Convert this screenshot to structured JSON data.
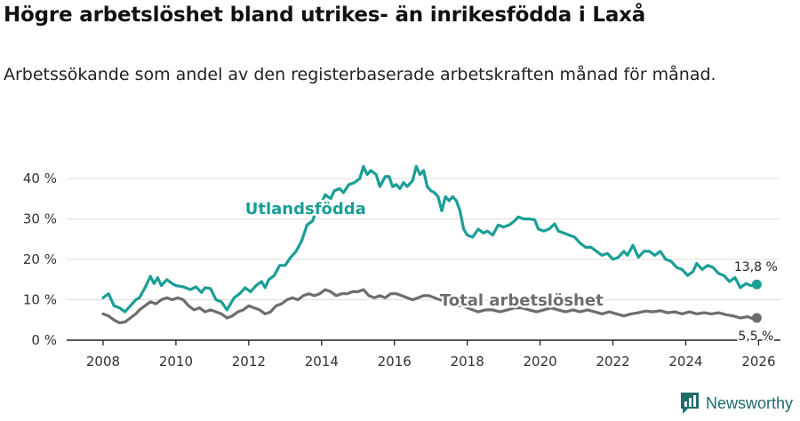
{
  "title": "Högre arbetslöshet bland utrikes- än inrikesfödda i Laxå",
  "subtitle": "Arbetssökande som andel av den registerbaserade arbetskraften månad för månad.",
  "brand": {
    "name": "Newsworthy",
    "icon": "bar-chart-logo-icon"
  },
  "colors": {
    "foreign_born": "#1a9e96",
    "total": "#6d6d6f",
    "grid": "#dddddd",
    "axis": "#222222"
  },
  "chart_data": {
    "type": "line",
    "title": "Högre arbetslöshet bland utrikes- än inrikesfödda i Laxå",
    "xlabel": "",
    "ylabel": "",
    "xlim": [
      2007,
      2026.6
    ],
    "ylim": [
      0,
      40
    ],
    "x_ticks": [
      2008,
      2010,
      2012,
      2014,
      2016,
      2018,
      2020,
      2022,
      2024,
      2026
    ],
    "x_tick_labels": [
      "2008",
      "2010",
      "2012",
      "2014",
      "2016",
      "2018",
      "2020",
      "2022",
      "2024",
      "2026"
    ],
    "y_ticks": [
      0,
      10,
      20,
      30,
      40
    ],
    "y_tick_labels": [
      "0 %",
      "10 %",
      "20 %",
      "30 %",
      "40 %"
    ],
    "grid": true,
    "series": [
      {
        "name": "Utlandsfödda",
        "color": "#1a9e96",
        "end_label": "13,8 %",
        "points": [
          [
            2008.0,
            10.5
          ],
          [
            2008.15,
            11.5
          ],
          [
            2008.3,
            8.5
          ],
          [
            2008.45,
            8.0
          ],
          [
            2008.6,
            7.0
          ],
          [
            2008.75,
            8.5
          ],
          [
            2008.9,
            10.0
          ],
          [
            2009.0,
            10.5
          ],
          [
            2009.15,
            13.0
          ],
          [
            2009.3,
            15.8
          ],
          [
            2009.4,
            14.0
          ],
          [
            2009.5,
            15.5
          ],
          [
            2009.6,
            13.5
          ],
          [
            2009.75,
            15.0
          ],
          [
            2009.9,
            14.0
          ],
          [
            2010.0,
            13.5
          ],
          [
            2010.2,
            13.2
          ],
          [
            2010.4,
            12.5
          ],
          [
            2010.55,
            13.2
          ],
          [
            2010.7,
            11.8
          ],
          [
            2010.8,
            13.0
          ],
          [
            2010.95,
            12.8
          ],
          [
            2011.1,
            10.0
          ],
          [
            2011.25,
            9.5
          ],
          [
            2011.4,
            7.5
          ],
          [
            2011.5,
            9.0
          ],
          [
            2011.6,
            10.5
          ],
          [
            2011.75,
            11.5
          ],
          [
            2011.9,
            13.0
          ],
          [
            2012.05,
            12.0
          ],
          [
            2012.2,
            13.5
          ],
          [
            2012.35,
            14.5
          ],
          [
            2012.45,
            13.0
          ],
          [
            2012.55,
            15.0
          ],
          [
            2012.7,
            16.0
          ],
          [
            2012.85,
            18.5
          ],
          [
            2013.0,
            18.5
          ],
          [
            2013.15,
            20.5
          ],
          [
            2013.3,
            22.0
          ],
          [
            2013.45,
            24.5
          ],
          [
            2013.6,
            28.5
          ],
          [
            2013.75,
            29.5
          ],
          [
            2013.9,
            33.0
          ],
          [
            2014.0,
            34.0
          ],
          [
            2014.1,
            36.0
          ],
          [
            2014.25,
            35.0
          ],
          [
            2014.35,
            37.0
          ],
          [
            2014.5,
            37.5
          ],
          [
            2014.6,
            36.5
          ],
          [
            2014.75,
            38.5
          ],
          [
            2014.9,
            39.0
          ],
          [
            2015.05,
            40.0
          ],
          [
            2015.15,
            43.0
          ],
          [
            2015.25,
            41.0
          ],
          [
            2015.35,
            42.0
          ],
          [
            2015.5,
            41.0
          ],
          [
            2015.6,
            38.0
          ],
          [
            2015.75,
            40.5
          ],
          [
            2015.85,
            40.5
          ],
          [
            2015.95,
            38.0
          ],
          [
            2016.05,
            38.5
          ],
          [
            2016.15,
            37.5
          ],
          [
            2016.25,
            39.0
          ],
          [
            2016.35,
            38.0
          ],
          [
            2016.5,
            39.5
          ],
          [
            2016.6,
            43.0
          ],
          [
            2016.7,
            41.0
          ],
          [
            2016.8,
            42.0
          ],
          [
            2016.9,
            38.0
          ],
          [
            2017.0,
            37.0
          ],
          [
            2017.1,
            36.5
          ],
          [
            2017.2,
            35.5
          ],
          [
            2017.3,
            32.0
          ],
          [
            2017.4,
            35.5
          ],
          [
            2017.5,
            34.5
          ],
          [
            2017.6,
            35.5
          ],
          [
            2017.7,
            34.5
          ],
          [
            2017.8,
            32.0
          ],
          [
            2017.9,
            27.5
          ],
          [
            2018.0,
            26.0
          ],
          [
            2018.15,
            25.5
          ],
          [
            2018.3,
            27.5
          ],
          [
            2018.45,
            26.5
          ],
          [
            2018.55,
            27.0
          ],
          [
            2018.7,
            26.0
          ],
          [
            2018.85,
            28.5
          ],
          [
            2019.0,
            28.0
          ],
          [
            2019.15,
            28.5
          ],
          [
            2019.3,
            29.5
          ],
          [
            2019.4,
            30.5
          ],
          [
            2019.55,
            30.0
          ],
          [
            2019.7,
            30.0
          ],
          [
            2019.85,
            29.8
          ],
          [
            2019.95,
            27.5
          ],
          [
            2020.1,
            27.0
          ],
          [
            2020.25,
            27.5
          ],
          [
            2020.4,
            28.8
          ],
          [
            2020.5,
            27.0
          ],
          [
            2020.65,
            26.5
          ],
          [
            2020.8,
            26.0
          ],
          [
            2020.95,
            25.5
          ],
          [
            2021.1,
            24.0
          ],
          [
            2021.25,
            23.0
          ],
          [
            2021.4,
            23.0
          ],
          [
            2021.55,
            22.0
          ],
          [
            2021.7,
            21.0
          ],
          [
            2021.85,
            21.5
          ],
          [
            2022.0,
            20.0
          ],
          [
            2022.15,
            20.5
          ],
          [
            2022.3,
            22.0
          ],
          [
            2022.4,
            21.0
          ],
          [
            2022.55,
            23.5
          ],
          [
            2022.7,
            20.5
          ],
          [
            2022.85,
            22.0
          ],
          [
            2023.0,
            22.0
          ],
          [
            2023.15,
            21.0
          ],
          [
            2023.3,
            22.0
          ],
          [
            2023.45,
            20.0
          ],
          [
            2023.6,
            19.5
          ],
          [
            2023.75,
            18.0
          ],
          [
            2023.9,
            17.5
          ],
          [
            2024.05,
            16.0
          ],
          [
            2024.2,
            17.0
          ],
          [
            2024.3,
            19.0
          ],
          [
            2024.45,
            17.5
          ],
          [
            2024.6,
            18.5
          ],
          [
            2024.75,
            18.0
          ],
          [
            2024.9,
            16.5
          ],
          [
            2025.05,
            16.0
          ],
          [
            2025.2,
            14.5
          ],
          [
            2025.35,
            15.5
          ],
          [
            2025.5,
            13.0
          ],
          [
            2025.65,
            14.0
          ],
          [
            2025.8,
            13.5
          ],
          [
            2025.95,
            13.8
          ]
        ]
      },
      {
        "name": "Total arbetslöshet",
        "color": "#6d6d6f",
        "end_label": "5,5 %",
        "points": [
          [
            2008.0,
            6.5
          ],
          [
            2008.15,
            6.0
          ],
          [
            2008.3,
            5.0
          ],
          [
            2008.45,
            4.3
          ],
          [
            2008.6,
            4.5
          ],
          [
            2008.75,
            5.5
          ],
          [
            2008.9,
            6.5
          ],
          [
            2009.0,
            7.5
          ],
          [
            2009.15,
            8.5
          ],
          [
            2009.3,
            9.5
          ],
          [
            2009.45,
            9.0
          ],
          [
            2009.6,
            10.0
          ],
          [
            2009.75,
            10.5
          ],
          [
            2009.9,
            10.0
          ],
          [
            2010.05,
            10.5
          ],
          [
            2010.2,
            10.0
          ],
          [
            2010.35,
            8.5
          ],
          [
            2010.5,
            7.5
          ],
          [
            2010.65,
            8.0
          ],
          [
            2010.8,
            7.0
          ],
          [
            2010.95,
            7.5
          ],
          [
            2011.1,
            7.0
          ],
          [
            2011.25,
            6.5
          ],
          [
            2011.4,
            5.5
          ],
          [
            2011.55,
            6.0
          ],
          [
            2011.7,
            7.0
          ],
          [
            2011.85,
            7.5
          ],
          [
            2012.0,
            8.5
          ],
          [
            2012.15,
            8.0
          ],
          [
            2012.3,
            7.5
          ],
          [
            2012.45,
            6.5
          ],
          [
            2012.6,
            7.0
          ],
          [
            2012.75,
            8.5
          ],
          [
            2012.9,
            9.0
          ],
          [
            2013.05,
            10.0
          ],
          [
            2013.2,
            10.5
          ],
          [
            2013.35,
            10.0
          ],
          [
            2013.5,
            11.0
          ],
          [
            2013.65,
            11.5
          ],
          [
            2013.8,
            11.0
          ],
          [
            2013.95,
            11.5
          ],
          [
            2014.1,
            12.5
          ],
          [
            2014.25,
            12.0
          ],
          [
            2014.4,
            11.0
          ],
          [
            2014.55,
            11.5
          ],
          [
            2014.7,
            11.5
          ],
          [
            2014.85,
            12.0
          ],
          [
            2015.0,
            12.0
          ],
          [
            2015.15,
            12.5
          ],
          [
            2015.3,
            11.0
          ],
          [
            2015.45,
            10.5
          ],
          [
            2015.6,
            11.0
          ],
          [
            2015.75,
            10.5
          ],
          [
            2015.9,
            11.5
          ],
          [
            2016.05,
            11.5
          ],
          [
            2016.2,
            11.0
          ],
          [
            2016.35,
            10.5
          ],
          [
            2016.5,
            10.0
          ],
          [
            2016.65,
            10.5
          ],
          [
            2016.8,
            11.0
          ],
          [
            2016.95,
            11.0
          ],
          [
            2017.1,
            10.5
          ],
          [
            2017.25,
            10.0
          ],
          [
            2017.4,
            9.5
          ],
          [
            2017.55,
            9.0
          ],
          [
            2017.7,
            8.5
          ],
          [
            2017.85,
            8.5
          ],
          [
            2018.0,
            8.0
          ],
          [
            2018.15,
            7.5
          ],
          [
            2018.3,
            7.0
          ],
          [
            2018.5,
            7.5
          ],
          [
            2018.7,
            7.5
          ],
          [
            2018.9,
            7.0
          ],
          [
            2019.1,
            7.5
          ],
          [
            2019.3,
            8.0
          ],
          [
            2019.5,
            8.0
          ],
          [
            2019.7,
            7.5
          ],
          [
            2019.9,
            7.0
          ],
          [
            2020.1,
            7.5
          ],
          [
            2020.3,
            8.0
          ],
          [
            2020.5,
            7.5
          ],
          [
            2020.7,
            7.0
          ],
          [
            2020.9,
            7.5
          ],
          [
            2021.1,
            7.0
          ],
          [
            2021.3,
            7.5
          ],
          [
            2021.5,
            7.0
          ],
          [
            2021.7,
            6.5
          ],
          [
            2021.9,
            7.0
          ],
          [
            2022.1,
            6.5
          ],
          [
            2022.3,
            6.0
          ],
          [
            2022.5,
            6.5
          ],
          [
            2022.7,
            6.8
          ],
          [
            2022.9,
            7.2
          ],
          [
            2023.1,
            7.0
          ],
          [
            2023.3,
            7.3
          ],
          [
            2023.5,
            6.8
          ],
          [
            2023.7,
            7.0
          ],
          [
            2023.9,
            6.5
          ],
          [
            2024.1,
            7.0
          ],
          [
            2024.3,
            6.5
          ],
          [
            2024.5,
            6.8
          ],
          [
            2024.7,
            6.5
          ],
          [
            2024.9,
            6.8
          ],
          [
            2025.1,
            6.3
          ],
          [
            2025.3,
            6.0
          ],
          [
            2025.5,
            5.5
          ],
          [
            2025.7,
            5.8
          ],
          [
            2025.85,
            5.3
          ],
          [
            2025.95,
            5.5
          ]
        ]
      }
    ]
  }
}
